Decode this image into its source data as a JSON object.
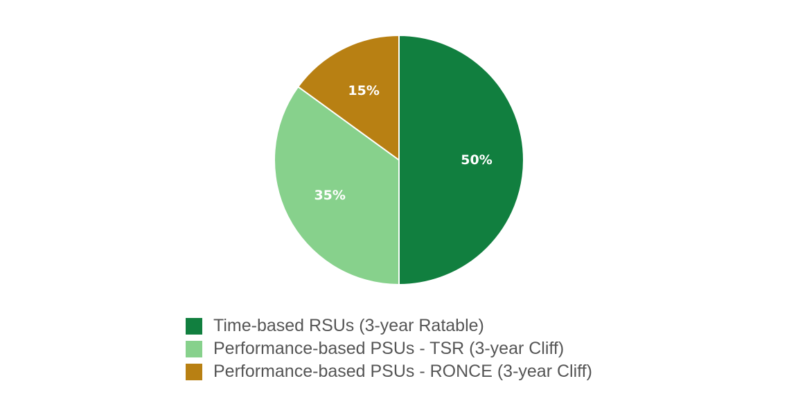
{
  "chart_data": {
    "type": "pie",
    "start_angle_deg": 0,
    "direction": "clockwise",
    "slices": [
      {
        "label": "Time-based RSUs (3-year Ratable)",
        "value": 50,
        "display": "50%",
        "color": "#117F3F"
      },
      {
        "label": "Performance-based PSUs - TSR (3-year Cliff)",
        "value": 35,
        "display": "35%",
        "color": "#87D18C"
      },
      {
        "label": "Performance-based PSUs - RONCE (3-year Cliff)",
        "value": 15,
        "display": "15%",
        "color": "#B88013"
      }
    ],
    "legend_position": "bottom",
    "title": ""
  }
}
